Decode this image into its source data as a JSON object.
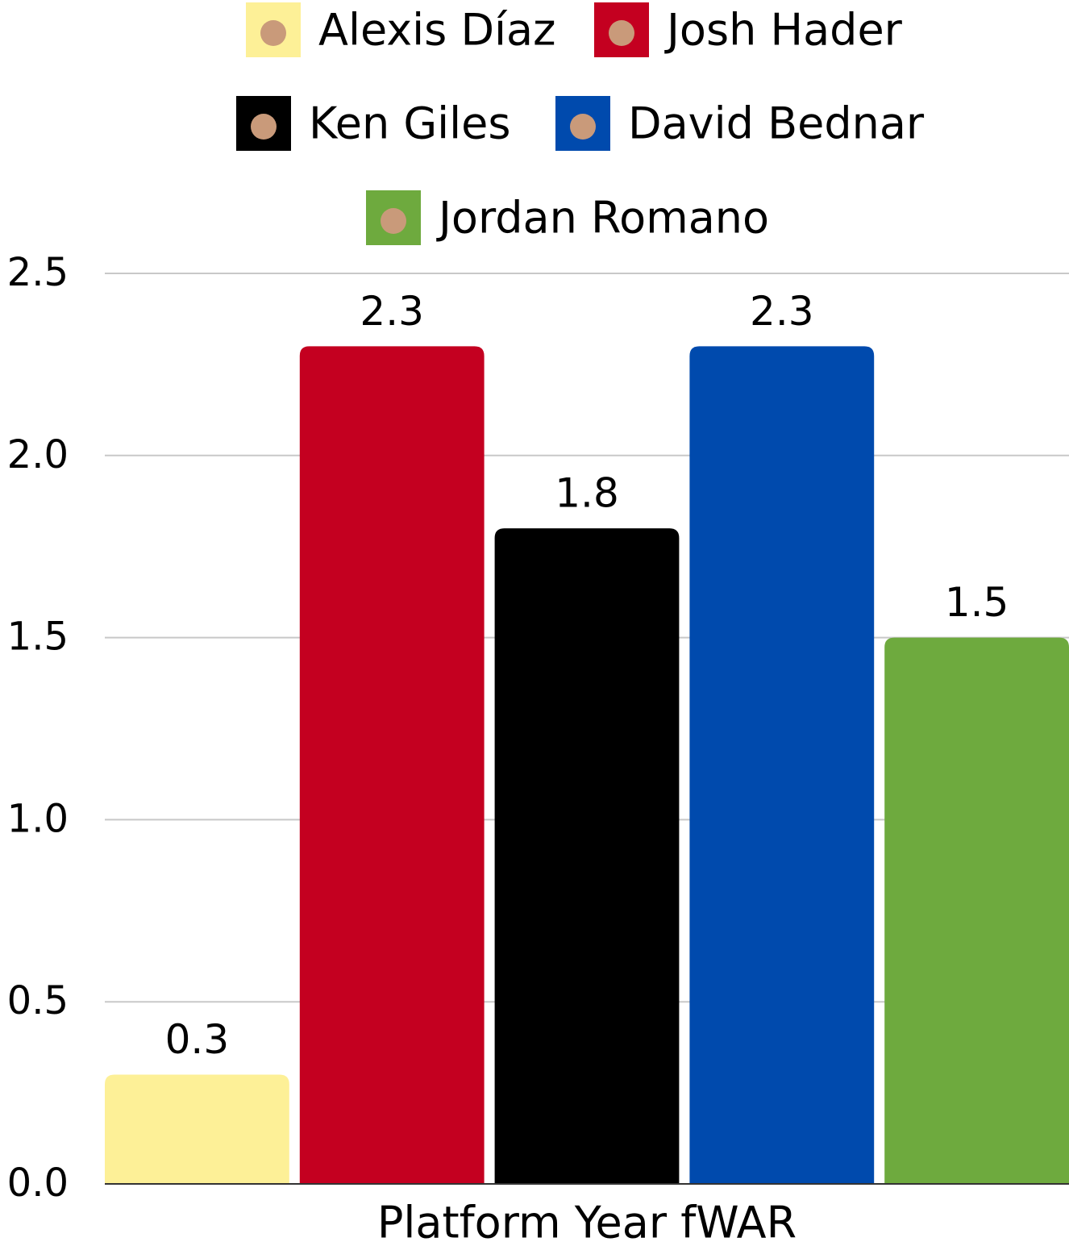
{
  "chart_data": {
    "type": "bar",
    "categories": [
      "Platform Year fWAR"
    ],
    "series": [
      {
        "name": "Alexis Díaz",
        "color": "#fdf097",
        "values": [
          0.3
        ]
      },
      {
        "name": "Josh Hader",
        "color": "#c40020",
        "values": [
          2.3
        ]
      },
      {
        "name": "Ken Giles",
        "color": "#000000",
        "values": [
          1.8
        ]
      },
      {
        "name": "David Bednar",
        "color": "#004aad",
        "values": [
          2.3
        ]
      },
      {
        "name": "Jordan Romano",
        "color": "#6eaa3e",
        "values": [
          1.5
        ]
      }
    ],
    "ylim": [
      0,
      2.5
    ],
    "yticks": [
      {
        "value": 0,
        "label": "0.0"
      },
      0.5,
      {
        "value": 1,
        "label": "1.0"
      },
      1.5,
      {
        "value": 2,
        "label": "2.0"
      },
      2.5
    ],
    "grid": true,
    "legend": "top"
  }
}
